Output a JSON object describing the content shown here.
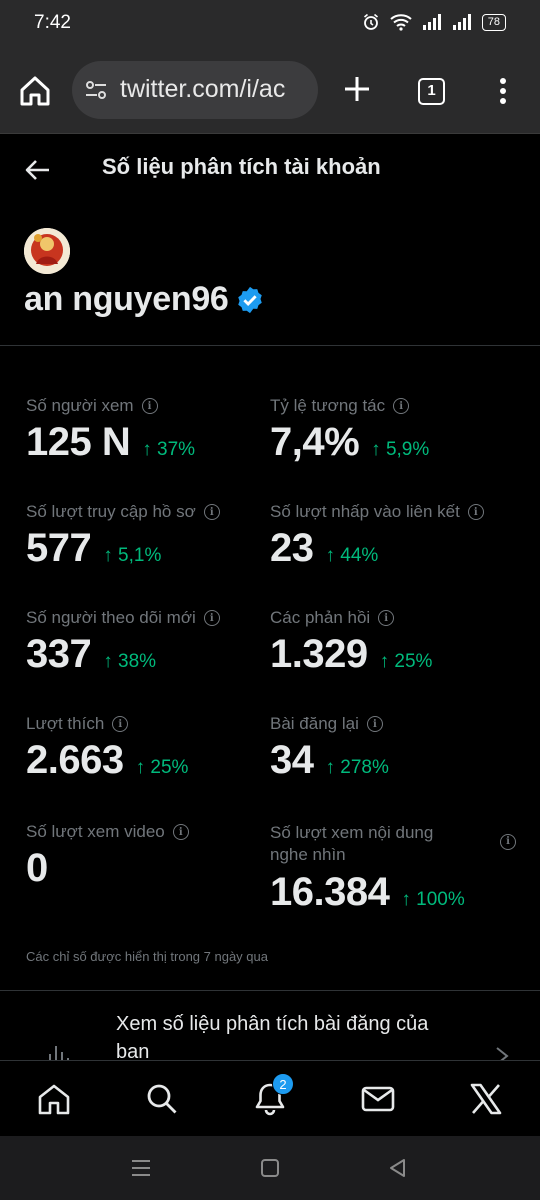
{
  "status": {
    "time": "7:42",
    "battery": "78"
  },
  "browser": {
    "url": "twitter.com/i/ac",
    "tab_count": "1"
  },
  "header": {
    "title": "Số liệu phân tích tài khoản"
  },
  "profile": {
    "username": "an nguyen96"
  },
  "metrics": [
    {
      "label": "Số người xem",
      "value": "125 N",
      "change": "↑ 37%"
    },
    {
      "label": "Tỷ lệ tương tác",
      "value": "7,4%",
      "change": "↑ 5,9%"
    },
    {
      "label": "Số lượt truy cập hồ sơ",
      "value": "577",
      "change": "↑ 5,1%"
    },
    {
      "label": "Số lượt nhấp vào liên kết",
      "value": "23",
      "change": "↑ 44%"
    },
    {
      "label": "Số người theo dõi mới",
      "value": "337",
      "change": "↑ 38%"
    },
    {
      "label": "Các phản hồi",
      "value": "1.329",
      "change": "↑ 25%"
    },
    {
      "label": "Lượt thích",
      "value": "2.663",
      "change": "↑ 25%"
    },
    {
      "label": "Bài đăng lại",
      "value": "34",
      "change": "↑ 278%"
    },
    {
      "label": "Số lượt xem video",
      "value": "0",
      "change": ""
    },
    {
      "label_line1": "Số lượt xem nội dung",
      "label_line2": "nghe nhìn",
      "value": "16.384",
      "change": "↑ 100%"
    }
  ],
  "footnote": "Các chỉ số được hiển thị trong 7 ngày qua",
  "post_analytics": {
    "label_line1": "Xem số liệu phân tích bài đăng của",
    "label_line2": "ban"
  },
  "nav": {
    "notification_badge": "2"
  },
  "colors": {
    "positive": "#00ba7c",
    "muted": "#71767b",
    "accent": "#1d9bf0"
  }
}
